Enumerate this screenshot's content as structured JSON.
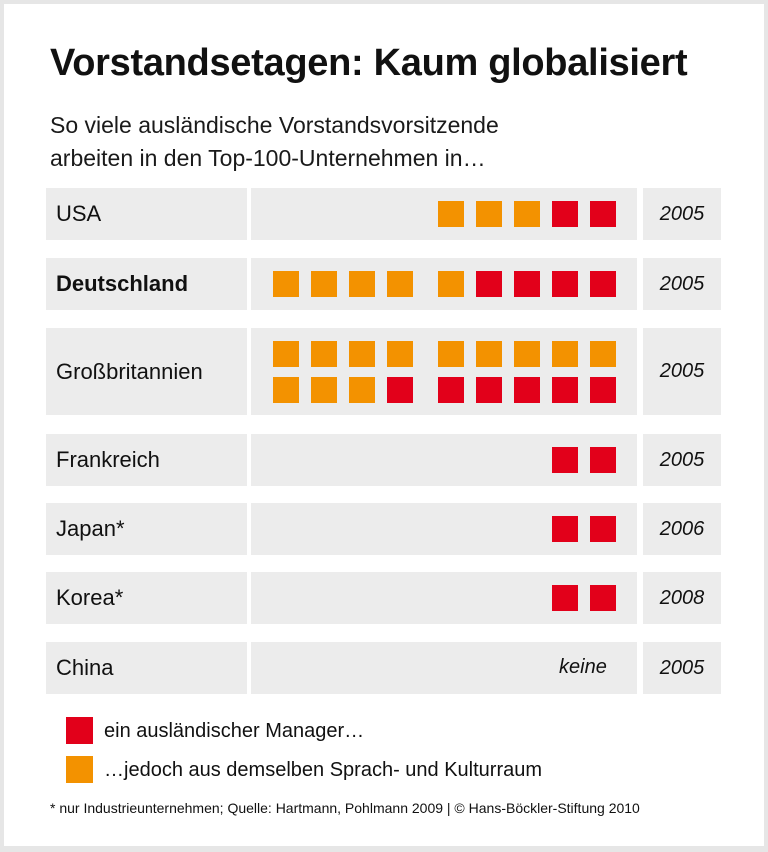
{
  "title": "Vorstandsetagen: Kaum globalisiert",
  "subtitle_lines": [
    "So viele ausländische Vorstandsvorsitzende",
    "arbeiten in den Top-100-Unternehmen in…"
  ],
  "colors": {
    "foreign": "#e2001a",
    "same_culture": "#f39200",
    "row_bg": "#ececec"
  },
  "chart_data": {
    "type": "pictogram",
    "unit": "one square = one foreign CEO",
    "rows": [
      {
        "country": "USA",
        "year": "2005",
        "same_culture": 3,
        "foreign": 2,
        "bold": false
      },
      {
        "country": "Deutschland",
        "year": "2005",
        "same_culture": 5,
        "foreign": 4,
        "bold": true
      },
      {
        "country": "Großbritannien",
        "year": "2005",
        "same_culture": 12,
        "foreign": 6,
        "bold": false
      },
      {
        "country": "Frankreich",
        "year": "2005",
        "same_culture": 0,
        "foreign": 2,
        "bold": false
      },
      {
        "country": "Japan*",
        "year": "2006",
        "same_culture": 0,
        "foreign": 2,
        "bold": false
      },
      {
        "country": "Korea*",
        "year": "2008",
        "same_culture": 0,
        "foreign": 2,
        "bold": false
      },
      {
        "country": "China",
        "year": "2005",
        "same_culture": 0,
        "foreign": 0,
        "bold": false,
        "note": "keine"
      }
    ],
    "legend": [
      {
        "key": "foreign",
        "label": "ein ausländischer Manager…"
      },
      {
        "key": "same_culture",
        "label": "…jedoch aus demselben Sprach- und Kulturraum"
      }
    ]
  },
  "footer": "* nur Industrieunternehmen; Quelle: Hartmann, Pohlmann 2009 | © Hans-Böckler-Stiftung 2010"
}
